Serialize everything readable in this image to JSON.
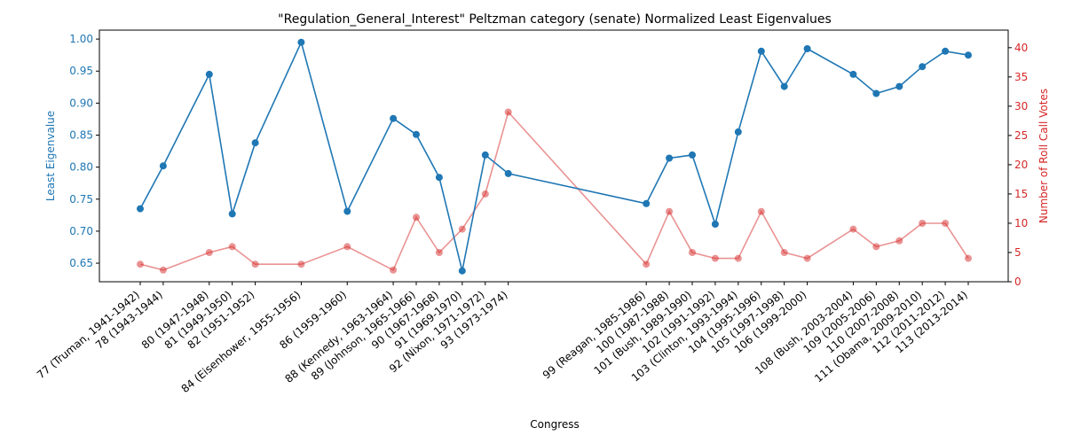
{
  "chart_data": {
    "type": "line",
    "title": "\"Regulation_General_Interest\" Peltzman category (senate) Normalized Least Eigenvalues",
    "xlabel": "Congress",
    "ylabel_left": "Least Eigenvalue",
    "ylabel_right": "Number of Roll Call Votes",
    "ylim_left": [
      0.621,
      1.014
    ],
    "ylim_right": [
      0,
      43
    ],
    "yticks_left": [
      "0.65",
      "0.70",
      "0.75",
      "0.80",
      "0.85",
      "0.90",
      "0.95",
      "1.00"
    ],
    "yticks_right": [
      "0",
      "5",
      "10",
      "15",
      "20",
      "25",
      "30",
      "35",
      "40"
    ],
    "colors": {
      "left": "#1f77b4",
      "right": "#d62728",
      "right_line": "#e88b8b"
    },
    "grid": false,
    "legend": "none",
    "x_ticks": [
      {
        "congress": 77,
        "label": "77 (Truman, 1941-1942)"
      },
      {
        "congress": 78,
        "label": "78 (1943-1944)"
      },
      {
        "congress": 80,
        "label": "80 (1947-1948)"
      },
      {
        "congress": 81,
        "label": "81 (1949-1950)"
      },
      {
        "congress": 82,
        "label": "82 (1951-1952)"
      },
      {
        "congress": 84,
        "label": "84 (Eisenhower, 1955-1956)"
      },
      {
        "congress": 86,
        "label": "86 (1959-1960)"
      },
      {
        "congress": 88,
        "label": "88 (Kennedy, 1963-1964)"
      },
      {
        "congress": 89,
        "label": "89 (Johnson, 1965-1966)"
      },
      {
        "congress": 90,
        "label": "90 (1967-1968)"
      },
      {
        "congress": 91,
        "label": "91 (1969-1970)"
      },
      {
        "congress": 92,
        "label": "92 (Nixon, 1971-1972)"
      },
      {
        "congress": 93,
        "label": "93 (1973-1974)"
      },
      {
        "congress": 99,
        "label": "99 (Reagan, 1985-1986)"
      },
      {
        "congress": 100,
        "label": "100 (1987-1988)"
      },
      {
        "congress": 101,
        "label": "101 (Bush, 1989-1990)"
      },
      {
        "congress": 102,
        "label": "102 (1991-1992)"
      },
      {
        "congress": 103,
        "label": "103 (Clinton, 1993-1994)"
      },
      {
        "congress": 104,
        "label": "104 (1995-1996)"
      },
      {
        "congress": 105,
        "label": "105 (1997-1998)"
      },
      {
        "congress": 106,
        "label": "106 (1999-2000)"
      },
      {
        "congress": 108,
        "label": "108 (Bush, 2003-2004)"
      },
      {
        "congress": 109,
        "label": "109 (2005-2006)"
      },
      {
        "congress": 110,
        "label": "110 (2007-2008)"
      },
      {
        "congress": 111,
        "label": "111 (Obama, 2009-2010)"
      },
      {
        "congress": 112,
        "label": "112 (2011-2012)"
      },
      {
        "congress": 113,
        "label": "113 (2013-2014)"
      }
    ],
    "series": [
      {
        "axis": "left",
        "x": [
          77,
          78,
          80,
          81,
          82,
          84,
          86,
          88,
          89,
          90,
          91,
          92,
          93,
          99,
          100,
          101,
          102,
          103,
          104,
          105,
          106,
          108,
          109,
          110,
          111,
          112,
          113
        ],
        "values": [
          0.735,
          0.802,
          0.945,
          0.727,
          0.838,
          0.995,
          0.731,
          0.876,
          0.851,
          0.784,
          0.638,
          0.819,
          0.79,
          0.743,
          0.814,
          0.819,
          0.711,
          0.855,
          0.981,
          0.926,
          0.985,
          0.945,
          0.915,
          0.926,
          0.957,
          0.981,
          0.975
        ]
      },
      {
        "axis": "right",
        "x": [
          77,
          78,
          80,
          81,
          82,
          84,
          86,
          88,
          89,
          90,
          91,
          92,
          93,
          99,
          100,
          101,
          102,
          103,
          104,
          105,
          106,
          108,
          109,
          110,
          111,
          112,
          113
        ],
        "values": [
          3,
          2,
          5,
          6,
          3,
          3,
          6,
          2,
          11,
          5,
          9,
          15,
          29,
          3,
          12,
          5,
          4,
          4,
          12,
          5,
          4,
          9,
          6,
          7,
          10,
          10,
          4
        ]
      }
    ]
  }
}
